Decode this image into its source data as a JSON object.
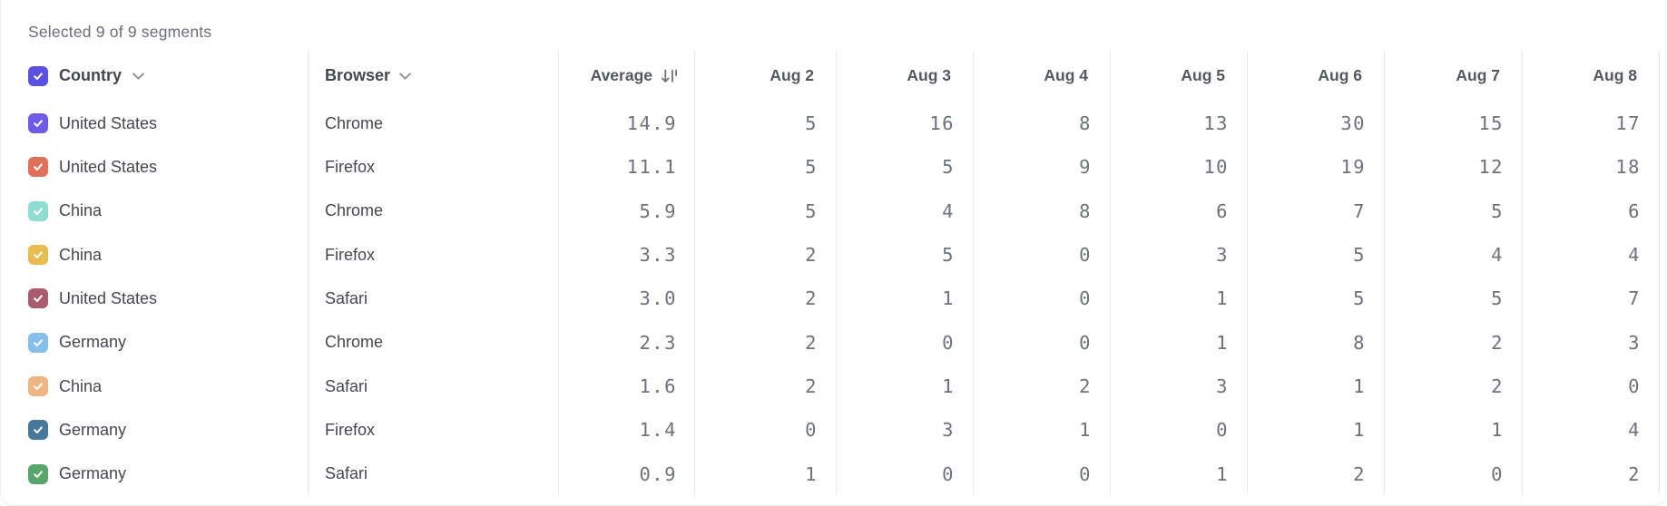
{
  "status_bar": {
    "selected_text": "Selected 9 of 9 segments"
  },
  "colors": {
    "header_checkbox": "#5A50E2",
    "divider": "#E9EAEE"
  },
  "table": {
    "headers": {
      "country": "Country",
      "browser": "Browser",
      "average": "Average",
      "dates": [
        "Aug 2",
        "Aug 3",
        "Aug 4",
        "Aug 5",
        "Aug 6",
        "Aug 7",
        "Aug 8"
      ]
    },
    "sort": {
      "column": "Average",
      "direction": "descending"
    },
    "rows": [
      {
        "checkbox_color": "#6E5BE8",
        "checked": true,
        "country": "United States",
        "browser": "Chrome",
        "average": "14.9",
        "values": [
          "5",
          "16",
          "8",
          "13",
          "30",
          "15",
          "17"
        ]
      },
      {
        "checkbox_color": "#DF705B",
        "checked": true,
        "country": "United States",
        "browser": "Firefox",
        "average": "11.1",
        "values": [
          "5",
          "5",
          "9",
          "10",
          "19",
          "12",
          "18"
        ]
      },
      {
        "checkbox_color": "#90DCD3",
        "checked": true,
        "country": "China",
        "browser": "Chrome",
        "average": "5.9",
        "values": [
          "5",
          "4",
          "8",
          "6",
          "7",
          "5",
          "6"
        ]
      },
      {
        "checkbox_color": "#E9BC51",
        "checked": true,
        "country": "China",
        "browser": "Firefox",
        "average": "3.3",
        "values": [
          "2",
          "5",
          "0",
          "3",
          "5",
          "4",
          "4"
        ]
      },
      {
        "checkbox_color": "#A95C6E",
        "checked": true,
        "country": "United States",
        "browser": "Safari",
        "average": "3.0",
        "values": [
          "2",
          "1",
          "0",
          "1",
          "5",
          "5",
          "7"
        ]
      },
      {
        "checkbox_color": "#86BEEC",
        "checked": true,
        "country": "Germany",
        "browser": "Chrome",
        "average": "2.3",
        "values": [
          "2",
          "0",
          "0",
          "1",
          "8",
          "2",
          "3"
        ]
      },
      {
        "checkbox_color": "#EFB583",
        "checked": true,
        "country": "China",
        "browser": "Safari",
        "average": "1.6",
        "values": [
          "2",
          "1",
          "2",
          "3",
          "1",
          "2",
          "0"
        ]
      },
      {
        "checkbox_color": "#46789B",
        "checked": true,
        "country": "Germany",
        "browser": "Firefox",
        "average": "1.4",
        "values": [
          "0",
          "3",
          "1",
          "0",
          "1",
          "1",
          "4"
        ]
      },
      {
        "checkbox_color": "#58A56D",
        "checked": true,
        "country": "Germany",
        "browser": "Safari",
        "average": "0.9",
        "values": [
          "1",
          "0",
          "0",
          "1",
          "2",
          "0",
          "2"
        ]
      }
    ]
  }
}
